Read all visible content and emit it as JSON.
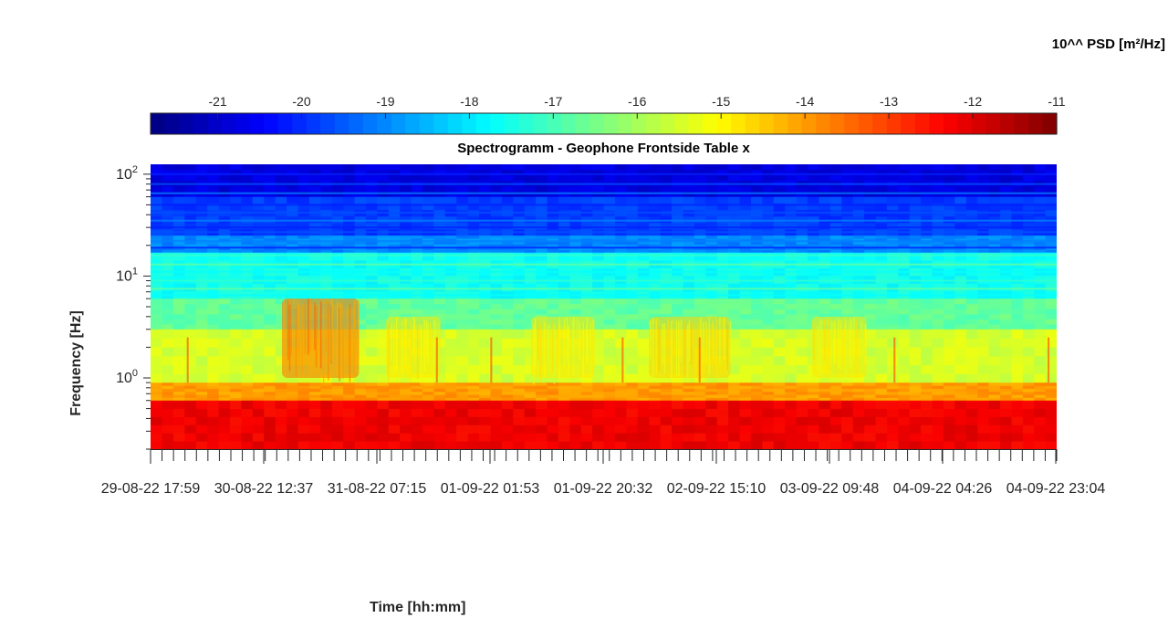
{
  "chart_data": {
    "type": "heatmap",
    "title": "Spectrogramm - Geophone Frontside Table x",
    "xlabel": "Time [hh:mm]",
    "ylabel": "Frequency [Hz]",
    "colorbar": {
      "label": "10^^ PSD [m²/Hz]",
      "ticks": [
        -21,
        -20,
        -19,
        -18,
        -17,
        -16,
        -15,
        -14,
        -13,
        -12,
        -11
      ],
      "range": [
        -21.8,
        -11
      ],
      "colormap": "jet",
      "location": "top"
    },
    "x_tick_labels": [
      "29-08-22  17:59",
      "30-08-22  12:37",
      "31-08-22  07:15",
      "01-09-22  01:53",
      "01-09-22  20:32",
      "02-09-22  15:10",
      "03-09-22  09:48",
      "04-09-22  04:26",
      "04-09-22  23:04"
    ],
    "y_scale": "log",
    "y_range": [
      0.2,
      125
    ],
    "y_ticks": [
      {
        "value": 1,
        "base": "10",
        "exp": "0"
      },
      {
        "value": 10,
        "base": "10",
        "exp": "1"
      },
      {
        "value": 100,
        "base": "10",
        "exp": "2"
      }
    ],
    "frequency_bands": [
      {
        "f_min": 60,
        "f_max": 125,
        "log10_psd": -20.8
      },
      {
        "f_min": 25,
        "f_max": 60,
        "log10_psd": -19.8
      },
      {
        "f_min": 17,
        "f_max": 25,
        "log10_psd": -19.0
      },
      {
        "f_min": 6,
        "f_max": 17,
        "log10_psd": -17.6
      },
      {
        "f_min": 3,
        "f_max": 6,
        "log10_psd": -16.7
      },
      {
        "f_min": 0.9,
        "f_max": 3,
        "log10_psd": -15.5
      },
      {
        "f_min": 0.6,
        "f_max": 0.9,
        "log10_psd": -14.0
      },
      {
        "f_min": 0.2,
        "f_max": 0.6,
        "log10_psd": -12.2
      }
    ],
    "activity_bursts": [
      {
        "t_start": 0.145,
        "t_end": 0.23,
        "f_min": 1.0,
        "f_max": 6.0,
        "log10_psd": -13.5
      },
      {
        "t_start": 0.26,
        "t_end": 0.32,
        "f_min": 1.0,
        "f_max": 4.0,
        "log10_psd": -14.8
      },
      {
        "t_start": 0.42,
        "t_end": 0.49,
        "f_min": 1.0,
        "f_max": 4.0,
        "log10_psd": -14.8
      },
      {
        "t_start": 0.55,
        "t_end": 0.64,
        "f_min": 1.0,
        "f_max": 4.0,
        "log10_psd": -14.6
      },
      {
        "t_start": 0.73,
        "t_end": 0.79,
        "f_min": 1.0,
        "f_max": 4.0,
        "log10_psd": -14.8
      }
    ]
  }
}
